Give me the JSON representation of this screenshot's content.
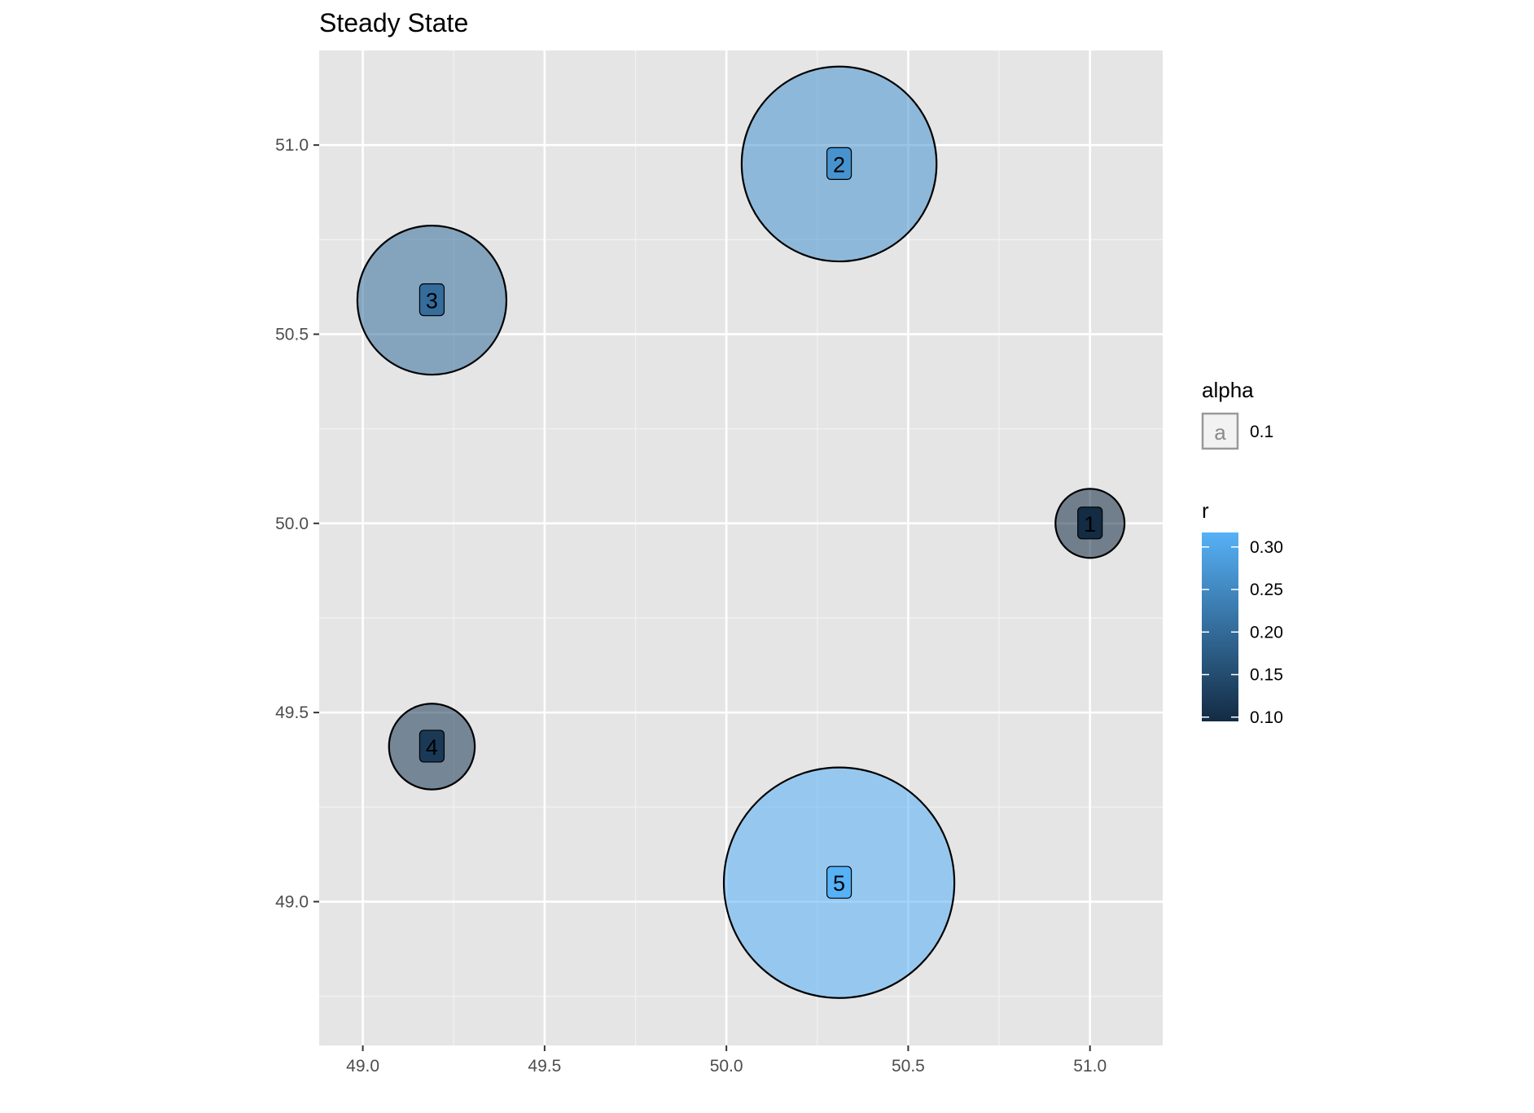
{
  "chart_data": {
    "type": "scatter",
    "title": "Steady State",
    "xlabel": "",
    "ylabel": "",
    "xlim": [
      48.88,
      51.2
    ],
    "ylim": [
      48.62,
      51.25
    ],
    "x_ticks": [
      {
        "value": 49.0,
        "label": "49.0"
      },
      {
        "value": 49.5,
        "label": "49.5"
      },
      {
        "value": 50.0,
        "label": "50.0"
      },
      {
        "value": 50.5,
        "label": "50.5"
      },
      {
        "value": 51.0,
        "label": "51.0"
      }
    ],
    "y_ticks": [
      {
        "value": 49.0,
        "label": "49.0"
      },
      {
        "value": 49.5,
        "label": "49.5"
      },
      {
        "value": 50.0,
        "label": "50.0"
      },
      {
        "value": 50.5,
        "label": "50.5"
      },
      {
        "value": 51.0,
        "label": "51.0"
      }
    ],
    "grid": true,
    "background": "#e5e5e5",
    "points": [
      {
        "label": "1",
        "x": 51.0,
        "y": 50.0,
        "r": 0.095
      },
      {
        "label": "2",
        "x": 50.31,
        "y": 50.95,
        "r": 0.268
      },
      {
        "label": "3",
        "x": 49.19,
        "y": 50.59,
        "r": 0.205
      },
      {
        "label": "4",
        "x": 49.19,
        "y": 49.41,
        "r": 0.118
      },
      {
        "label": "5",
        "x": 50.31,
        "y": 49.05,
        "r": 0.317
      }
    ],
    "legend": {
      "placement": "right",
      "alpha": {
        "title": "alpha",
        "key_glyph": "a",
        "label": "0.1"
      },
      "r": {
        "title": "r",
        "range": [
          0.095,
          0.317
        ],
        "ticks": [
          {
            "value": 0.1,
            "label": "0.10"
          },
          {
            "value": 0.15,
            "label": "0.15"
          },
          {
            "value": 0.2,
            "label": "0.20"
          },
          {
            "value": 0.25,
            "label": "0.25"
          },
          {
            "value": 0.3,
            "label": "0.30"
          }
        ],
        "color_low": "#132B43",
        "color_high": "#56B1F7"
      }
    },
    "circle_fill_opacity": 0.55,
    "circle_stroke": "#000000"
  }
}
